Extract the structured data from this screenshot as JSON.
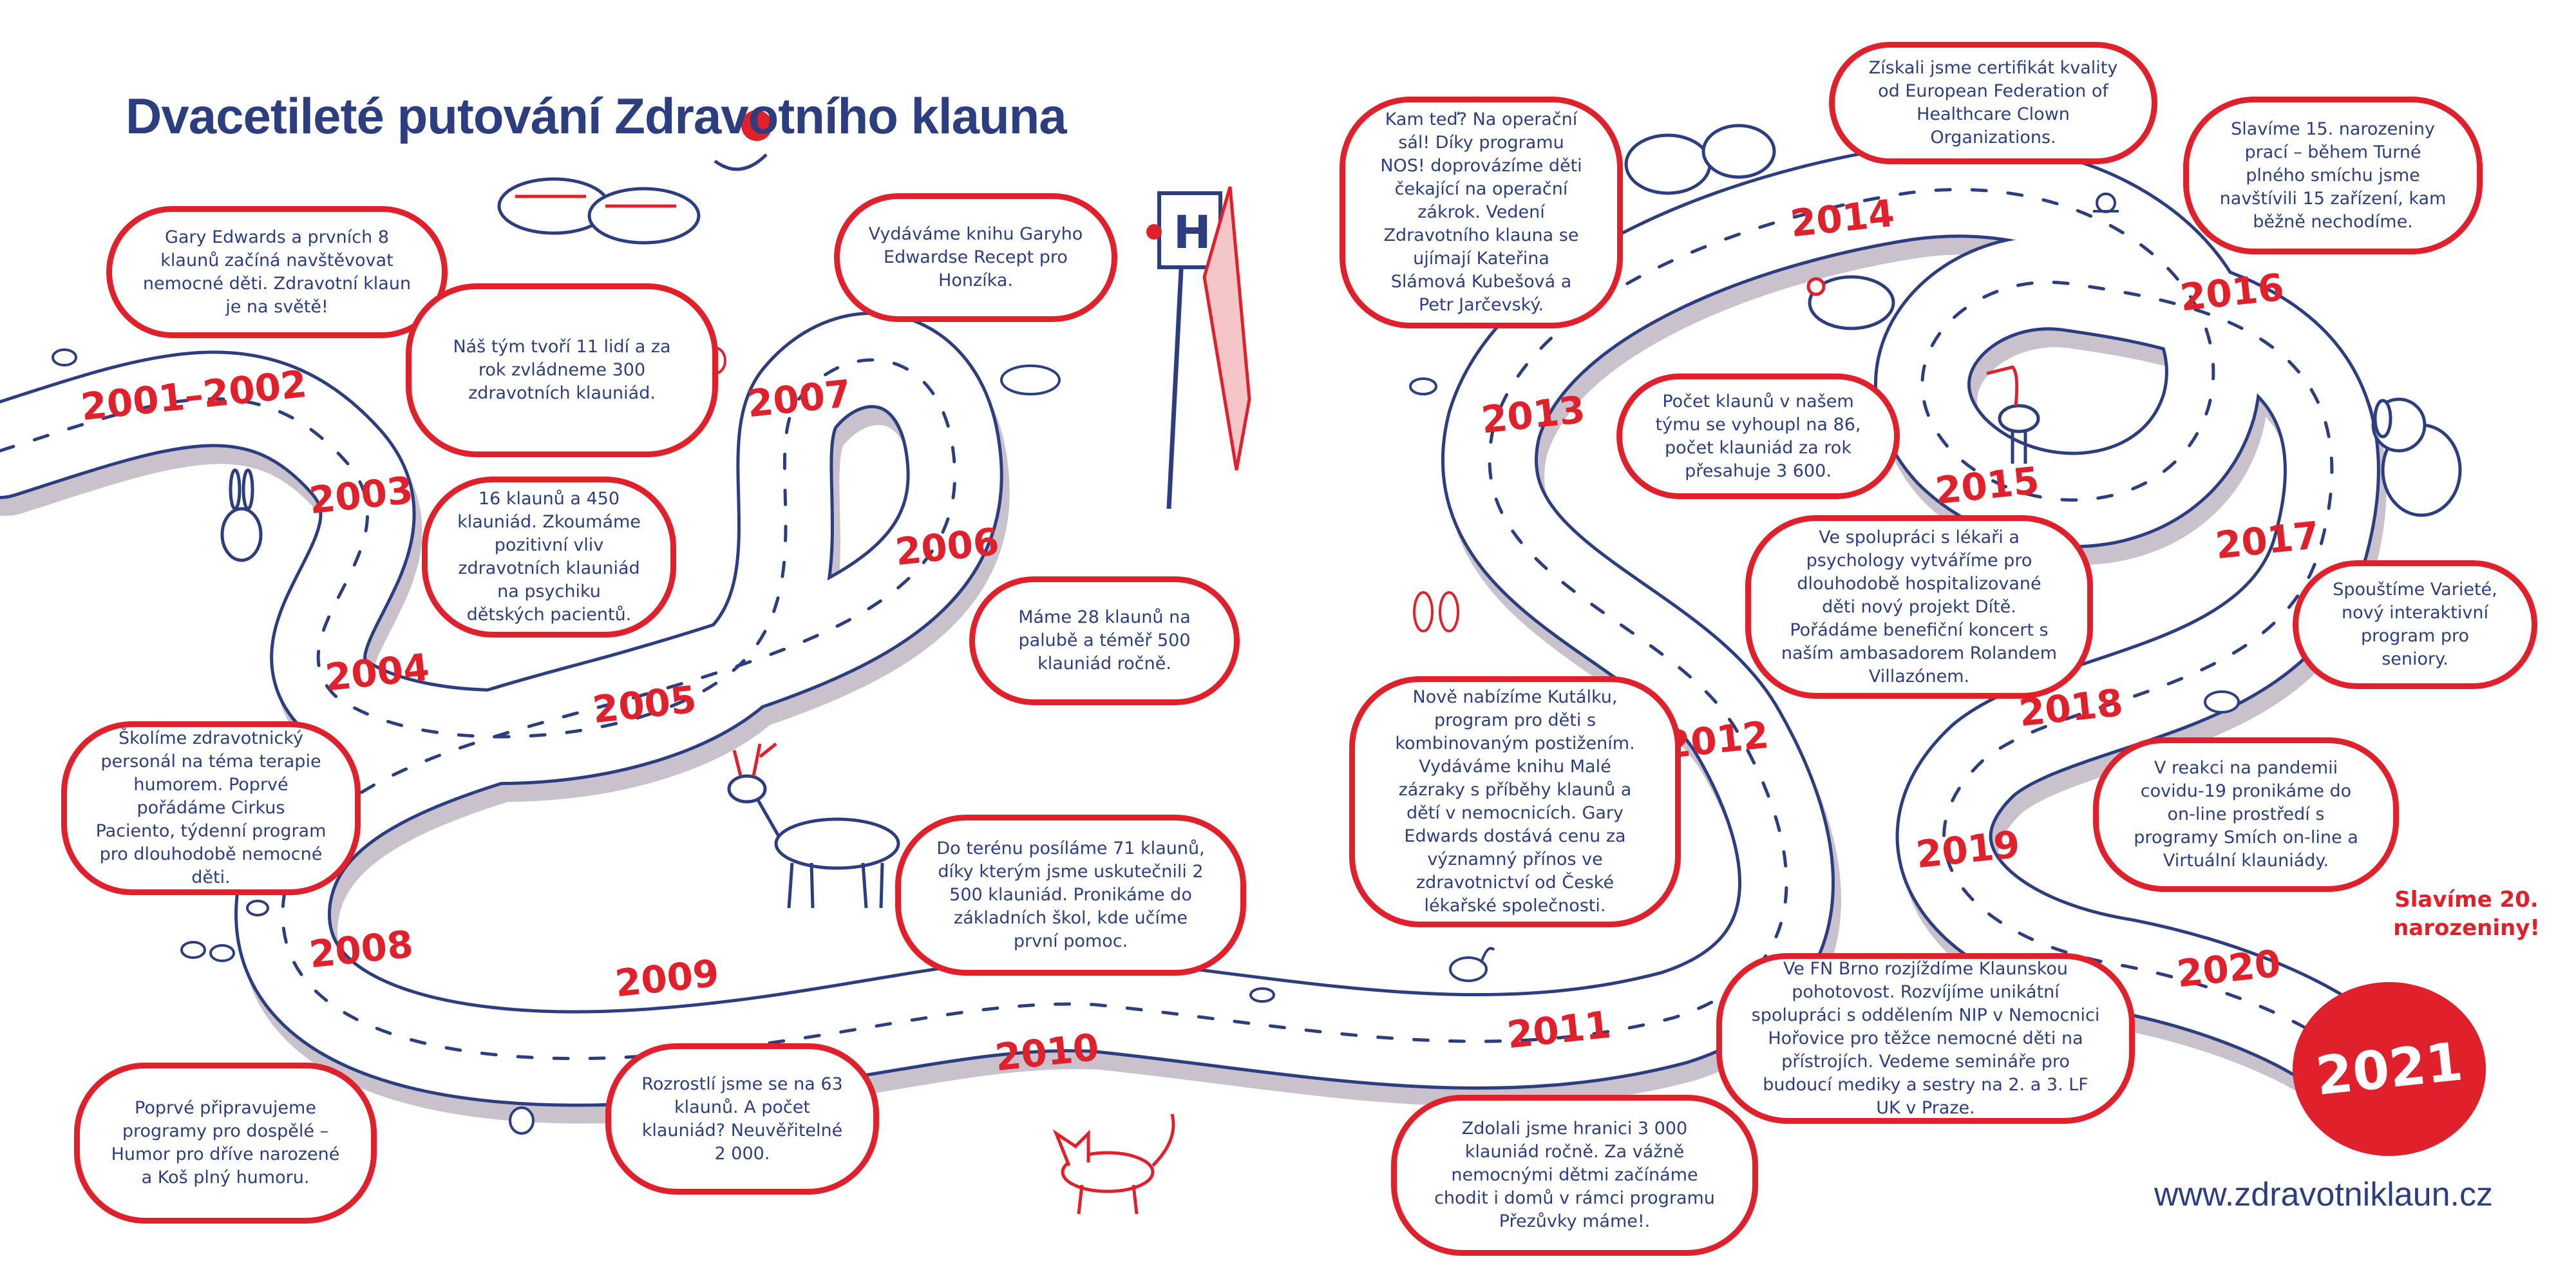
{
  "title": "Dvacetileté putování Zdravotního klauna",
  "url": "www.zdravotniklaun.cz",
  "colors": {
    "red": "#e0202b",
    "navy": "#2d3e80",
    "road": "#ffffff",
    "shadow": "#c9c2cc"
  },
  "icons": [
    "red-nose-icon",
    "clown-shoes-icon",
    "hospital-sign-icon",
    "rabbit-icon",
    "deer-icon",
    "sheep-icon",
    "stork-icon",
    "dog-icon",
    "fox-icon",
    "bird-icon",
    "snail-icon"
  ],
  "years": [
    "2001–2002",
    "2003",
    "2004",
    "2005",
    "2006",
    "2007",
    "2008",
    "2009",
    "2010",
    "2011",
    "2012",
    "2013",
    "2014",
    "2015",
    "2016",
    "2017",
    "2018",
    "2019",
    "2020",
    "2021"
  ],
  "final_year": "2021",
  "celebrate": "Slavíme 20. narozeniny!",
  "events": [
    {
      "year": "2001–2002",
      "text": "Gary Edwards a prvních 8 klaunů začíná navštěvovat nemocné děti. Zdravotní klaun je na světě!"
    },
    {
      "year": "2003",
      "text": "Náš tým tvoří 11 lidí a za rok zvládneme 300 zdravotních klauniád."
    },
    {
      "year": "2004",
      "text": "Školíme zdravotnický personál na téma terapie humorem. Poprvé pořádáme Cirkus Paciento, týdenní program pro dlouhodobě nemocné děti."
    },
    {
      "year": "2005",
      "text": "16 klaunů a 450 klauniád. Zkoumáme pozitivní vliv zdravotních klauniád na psychiku dětských pacientů."
    },
    {
      "year": "2006",
      "text": "Máme 28 klaunů na palubě a téměř 500 klauniád ročně."
    },
    {
      "year": "2007",
      "text": "Vydáváme knihu Garyho Edwardse Recept pro Honzíka."
    },
    {
      "year": "2008",
      "text": "Poprvé připravujeme programy pro dospělé – Humor pro dříve narozené a Koš plný humoru."
    },
    {
      "year": "2009",
      "text": "Rozrostlí jsme se na 63 klaunů. A počet klauniád? Neuvěřitelné 2 000."
    },
    {
      "year": "2010",
      "text": "Do terénu posíláme 71 klaunů, díky kterým jsme uskutečnili 2 500 klauniád. Pronikáme do základních škol, kde učíme první pomoc."
    },
    {
      "year": "2011",
      "text": "Zdolali jsme hranici 3 000 klauniád ročně. Za vážně nemocnými dětmi začínáme chodit i domů v rámci programu Přezůvky máme!."
    },
    {
      "year": "2012",
      "text": "Nově nabízíme Kutálku, program pro děti s kombinovaným postižením. Vydáváme knihu Malé zázraky s příběhy klaunů a dětí v nemocnicích. Gary Edwards dostává cenu za významný přínos ve zdravotnictví od České lékařské společnosti."
    },
    {
      "year": "2013",
      "text": "Kam teď? Na operační sál! Díky programu NOS! doprovázíme děti čekající na operační zákrok. Vedení Zdravotního klauna se ujímají Kateřina Slámová Kubešová a Petr Jarčevský."
    },
    {
      "year": "2014",
      "text": "Získali jsme certifikát kvality od European Federation of Healthcare Clown Organizations."
    },
    {
      "year": "2015",
      "text": "Počet klaunů v našem týmu se vyhoupl na 86, počet klauniád za rok přesahuje 3 600."
    },
    {
      "year": "2016",
      "text": "Slavíme 15. narozeniny prací – během Turné plného smíchu jsme navštívili 15 zařízení, kam běžně nechodíme."
    },
    {
      "year": "2017",
      "text": "Spouštíme Varieté, nový interaktivní program pro seniory."
    },
    {
      "year": "2018",
      "text": "Ve spolupráci s lékaři a psychology vytváříme pro dlouhodobě hospitalizované děti nový projekt Dítě. Pořádáme benefiční koncert s naším ambasadorem Rolandem Villazónem."
    },
    {
      "year": "2019",
      "text": "Ve FN Brno rozjíždíme Klaunskou pohotovost. Rozvíjíme unikátní spolupráci s oddělením NIP v Nemocnici Hořovice pro těžce nemocné děti na přístrojích. Vedeme semináře pro budoucí mediky a sestry na 2. a 3. LF UK v Praze."
    },
    {
      "year": "2020",
      "text": "V reakci na pandemii covidu-19 pronikáme do on-line prostředí s programy Smích on-line a Virtuální klauniády."
    }
  ]
}
